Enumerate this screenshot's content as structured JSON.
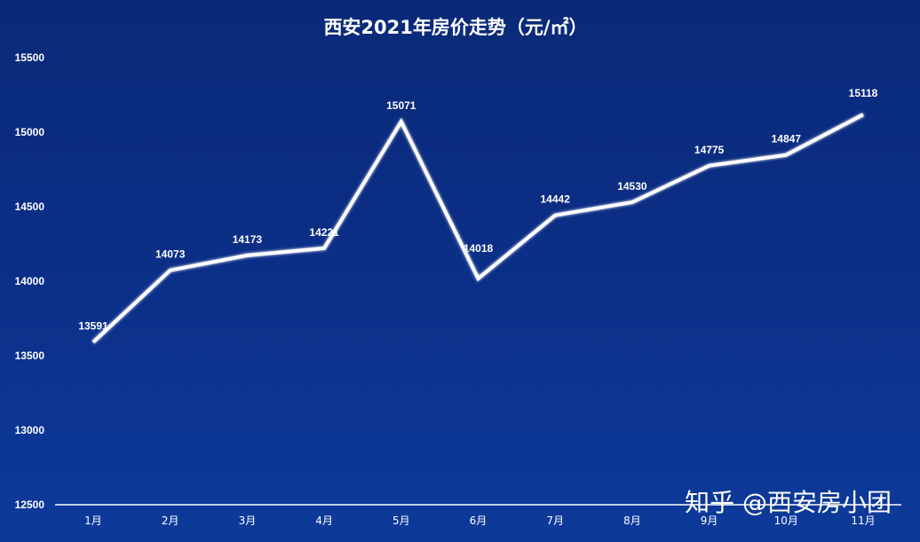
{
  "chart_data": {
    "type": "line",
    "title": "西安2021年房价走势（元/㎡）",
    "categories": [
      "1月",
      "2月",
      "3月",
      "4月",
      "5月",
      "6月",
      "7月",
      "8月",
      "9月",
      "10月",
      "11月"
    ],
    "series": [
      {
        "values": [
          13591,
          14073,
          14173,
          14221,
          15071,
          14018,
          14442,
          14530,
          14775,
          14847,
          15118
        ]
      }
    ],
    "ylim": [
      12500,
      15500
    ],
    "yticks": [
      12500,
      13000,
      13500,
      14000,
      14500,
      15000,
      15500
    ],
    "xlabel": "",
    "ylabel": "",
    "grid": false,
    "drop_lines": true,
    "data_labels": true,
    "colors": {
      "background": "#0b2e86",
      "line": "#ffffff",
      "text": "#ffffff"
    }
  },
  "credit": "知乎 @西安房小团"
}
